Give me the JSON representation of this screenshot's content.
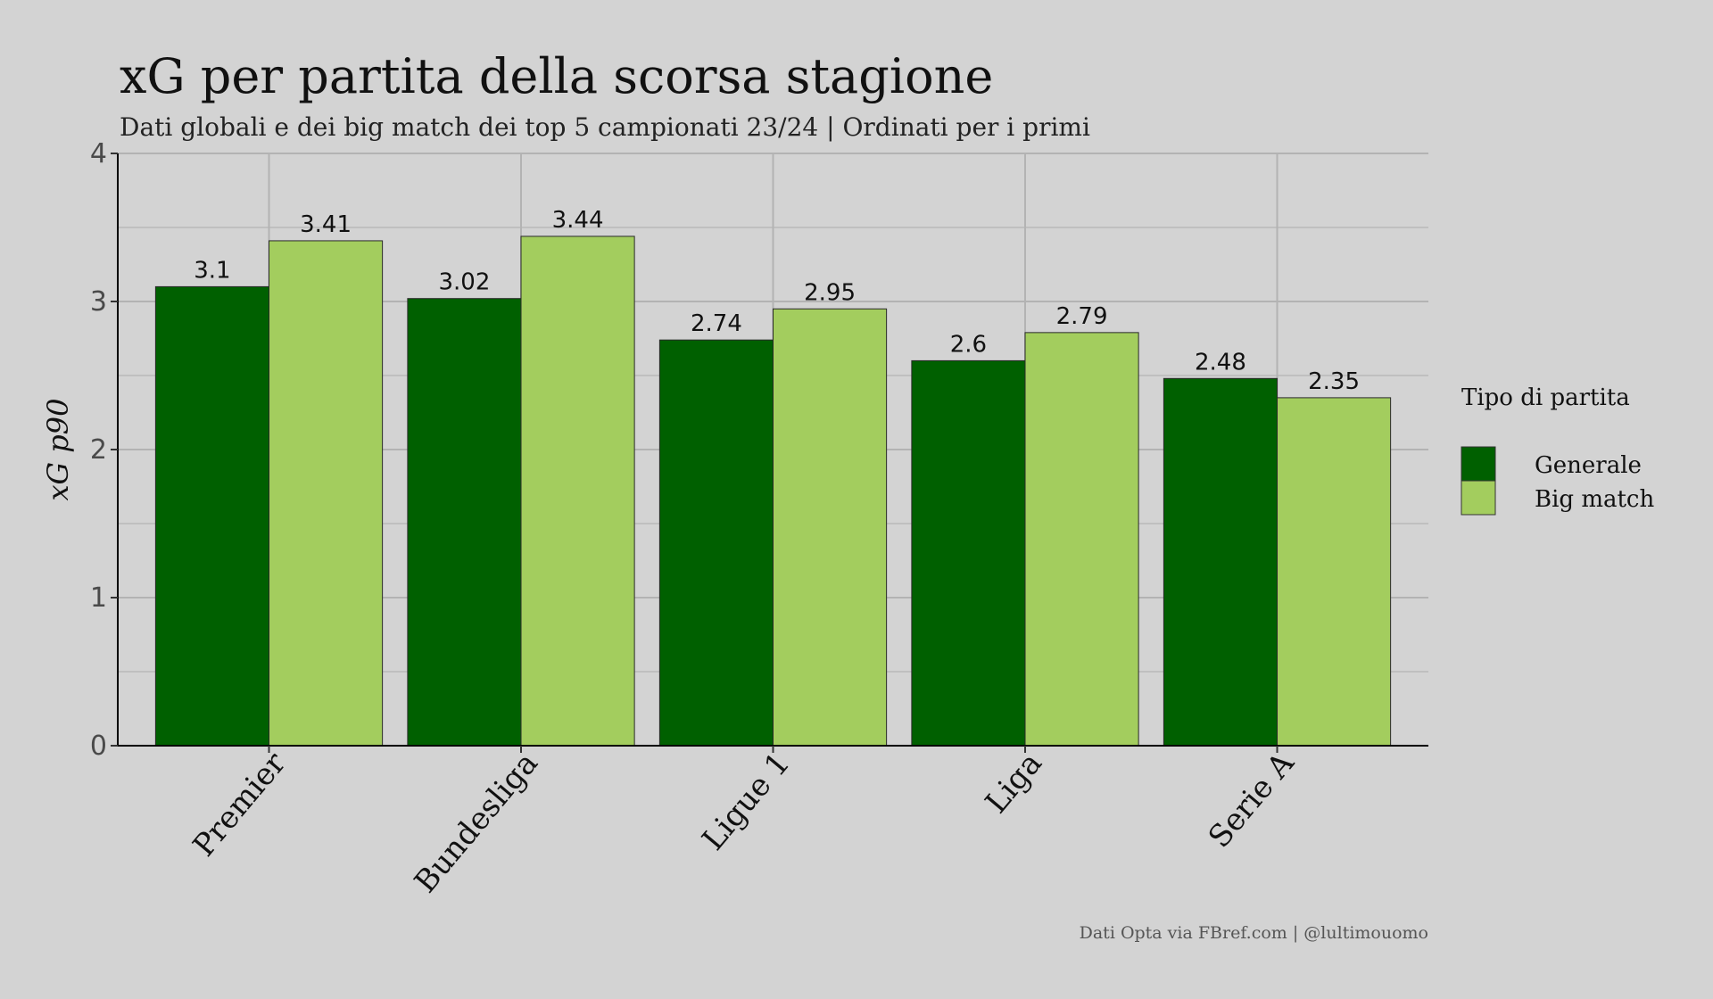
{
  "chart_data": {
    "type": "bar",
    "title": "xG per partita della scorsa stagione",
    "subtitle": "Dati globali e dei big match dei top 5 campionati 23/24 | Ordinati per i primi",
    "ylabel": "xG p90",
    "xlabel": "",
    "categories": [
      "Premier",
      "Bundesliga",
      "Ligue 1",
      "Liga",
      "Serie A"
    ],
    "series": [
      {
        "name": "Generale",
        "values": [
          3.1,
          3.02,
          2.74,
          2.6,
          2.48
        ],
        "color": "#006000"
      },
      {
        "name": "Big match",
        "values": [
          3.41,
          3.44,
          2.95,
          2.79,
          2.35
        ],
        "color": "#a3cd5e"
      }
    ],
    "data_labels": [
      [
        "3.1",
        "3.02",
        "2.74",
        "2.6",
        "2.48"
      ],
      [
        "3.41",
        "3.44",
        "2.95",
        "2.79",
        "2.35"
      ]
    ],
    "ylim": [
      0,
      4
    ],
    "yticks": [
      0,
      1,
      2,
      3,
      4
    ],
    "grid": true,
    "legend": {
      "title": "Tipo di partita",
      "placement": "right"
    },
    "caption": "Dati Opta via FBref.com | @lultimouomo",
    "colors": {
      "background": "#d3d3d3",
      "grid": "#b3b3b3",
      "axis": "#000000"
    }
  }
}
